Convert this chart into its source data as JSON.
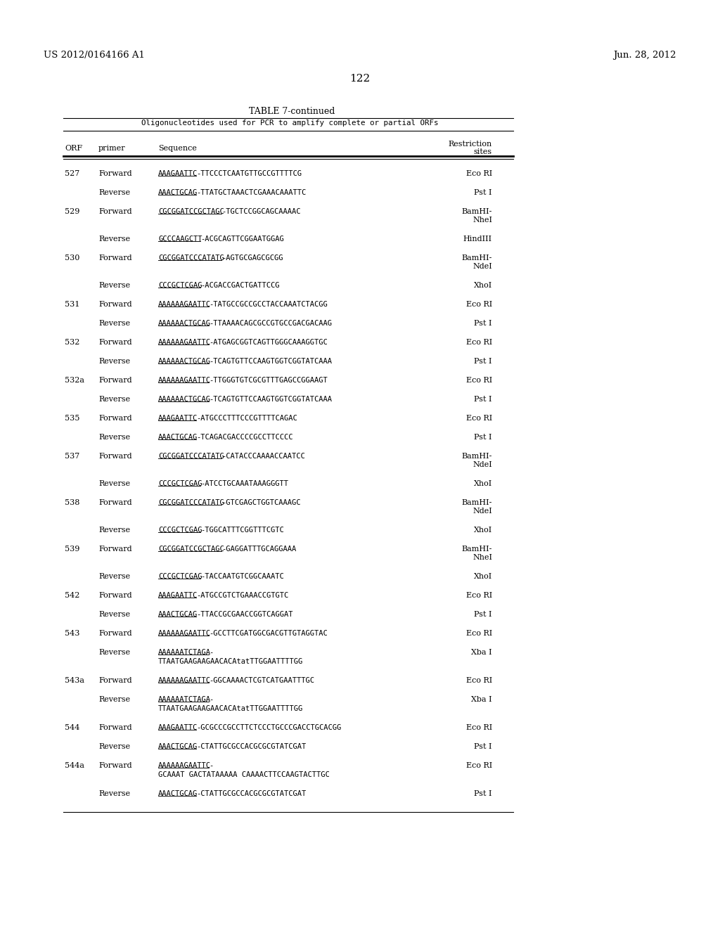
{
  "header_left": "US 2012/0164166 A1",
  "header_right": "Jun. 28, 2012",
  "page_number": "122",
  "table_title": "TABLE 7-continued",
  "table_subtitle": "Oligonucleotides used for PCR to amplify complete or partial ORFs",
  "bg_color": "#ffffff",
  "text_color": "#000000",
  "rows_data": [
    [
      "527",
      "Forward",
      "AAAGAATTC",
      "-TTCCCTCAATGTTGCCGTTTTCG",
      "Eco RI",
      ""
    ],
    [
      "",
      "Reverse",
      "AAACTGCAG",
      "-TTATGCTAAACTCGAAACAAATTC",
      "Pst I",
      ""
    ],
    [
      "529",
      "Forward",
      "CGCGGATCCGCTAGC",
      "-TGCTCCGGCAGCAAAAC",
      "BamHI-",
      "NheI"
    ],
    [
      "",
      "Reverse",
      "GCCCAAGCTT",
      "-ACGCAGTTCGGAATGGAG",
      "HindIII",
      ""
    ],
    [
      "530",
      "Forward",
      "CGCGGATCCCATATG",
      "-AGTGCGAGCGCGG",
      "BamHI-",
      "NdeI"
    ],
    [
      "",
      "Reverse",
      "CCCGCTCGAG",
      "-ACGACCGACTGATTCCG",
      "XhoI",
      ""
    ],
    [
      "531",
      "Forward",
      "AAAAAAGAATTC",
      "-TATGCCGCCGCCTACCAAATCTACGG",
      "Eco RI",
      ""
    ],
    [
      "",
      "Reverse",
      "AAAAAACTGCAG",
      "-TTAAAACAGCGCCGTGCCGACGACAAG",
      "Pst I",
      ""
    ],
    [
      "532",
      "Forward",
      "AAAAAAGAATTC",
      "-ATGAGCGGTCAGTTGGGCAAAGGTGC",
      "Eco RI",
      ""
    ],
    [
      "",
      "Reverse",
      "AAAAAACTGCAG",
      "-TCAGTGTTCCAAGTGGTCGGTATCAAA",
      "Pst I",
      ""
    ],
    [
      "532a",
      "Forward",
      "AAAAAAGAATTC",
      "-TTGGGTGTCGCGTTTGAGCCGGAAGT",
      "Eco RI",
      ""
    ],
    [
      "",
      "Reverse",
      "AAAAAACTGCAG",
      "-TCAGTGTTCCAAGTGGTCGGTATCAAA",
      "Pst I",
      ""
    ],
    [
      "535",
      "Forward",
      "AAAGAATTC",
      "-ATGCCCTTTCCCGTTTTCAGAC",
      "Eco RI",
      ""
    ],
    [
      "",
      "Reverse",
      "AAACTGCAG",
      "-TCAGACGACCCCGCCTTCCCC",
      "Pst I",
      ""
    ],
    [
      "537",
      "Forward",
      "CGCGGATCCCATATG",
      "-CATACCCAAAACCAATCC",
      "BamHI-",
      "NdeI"
    ],
    [
      "",
      "Reverse",
      "CCCGCTCGAG",
      "-ATCCTGCAAATAAAGGGTT",
      "XhoI",
      ""
    ],
    [
      "538",
      "Forward",
      "CGCGGATCCCATATG",
      "-GTCGAGCTGGTCAAAGC",
      "BamHI-",
      "NdeI"
    ],
    [
      "",
      "Reverse",
      "CCCGCTCGAG",
      "-TGGCATTTCGGTTTCGTC",
      "XhoI",
      ""
    ],
    [
      "539",
      "Forward",
      "CGCGGATCCGCTAGC",
      "-GAGGATTTGCAGGAAA",
      "BamHI-",
      "NheI"
    ],
    [
      "",
      "Reverse",
      "CCCGCTCGAG",
      "-TACCAATGTCGGCAAATC",
      "XhoI",
      ""
    ],
    [
      "542",
      "Forward",
      "AAAGAATTC",
      "-ATGCCGTCTGAAACCGTGTC",
      "Eco RI",
      ""
    ],
    [
      "",
      "Reverse",
      "AAACTGCAG",
      "-TTACCGCGAACCGGTCAGGAT",
      "Pst I",
      ""
    ],
    [
      "543",
      "Forward",
      "AAAAAAGAATTC",
      "-GCCTTCGATGGCGACGTTGTAGGTAC",
      "Eco RI",
      ""
    ],
    [
      "",
      "Reverse",
      "AAAAAATCTAGA",
      "-\nTTAATGAAGAAGAACACAtatTTGGAATTTTGG",
      "Xba I",
      ""
    ],
    [
      "543a",
      "Forward",
      "AAAAAAGAATTC",
      "-GGCAAAACTCGTCATGAATTTGC",
      "Eco RI",
      ""
    ],
    [
      "",
      "Reverse",
      "AAAAAATCTAGA",
      "-\nTTAATGAAGAAGAACACAtatTTGGAATTTTGG",
      "Xba I",
      ""
    ],
    [
      "544",
      "Forward",
      "AAAGAATTC",
      "-GCGCCCGCCTTCTCCCTGCCCGACCTGCACGG",
      "Eco RI",
      ""
    ],
    [
      "",
      "Reverse",
      "AAACTGCAG",
      "-CTATTGCGCCACGCGCGTATCGAT",
      "Pst I",
      ""
    ],
    [
      "544a",
      "Forward",
      "AAAAAAGAATTC",
      "-\nGCAAAT GACTATAAAAA CAAAACTTCCAAGTACTTGC",
      "Eco RI",
      ""
    ],
    [
      "",
      "Reverse",
      "AAACTGCAG",
      "-CTATTGCGCCACGCGCGTATCGAT",
      "Pst I",
      ""
    ]
  ]
}
